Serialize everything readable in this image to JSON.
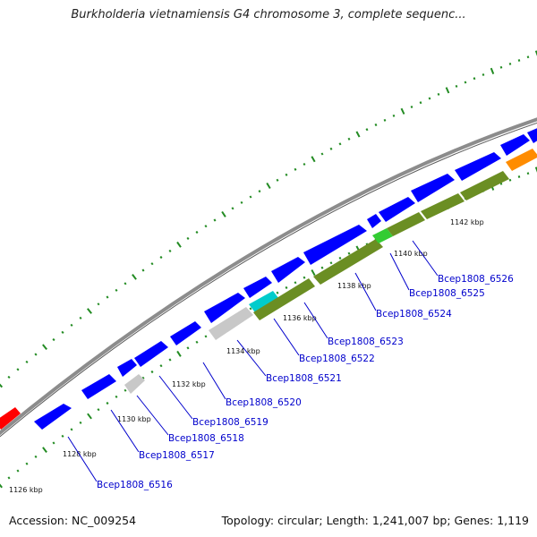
{
  "title": "Burkholderia vietnamiensis G4 chromosome 3, complete sequenc...",
  "footer": {
    "accession": "Accession: NC_009254",
    "stats": "Topology: circular; Length: 1,241,007 bp; Genes: 1,119"
  },
  "colors": {
    "backbone": "#8c8c8c",
    "forward_gene": "#0000ff",
    "reverse_gene": "#6b8e23",
    "gray_gene": "#c8c8c8",
    "red_gene": "#ff0000",
    "orange_gene": "#ff8c00",
    "cyan_gene": "#00cccc",
    "green_gene": "#33cc33",
    "tick_major": "#006400",
    "tick_minor": "#228b22",
    "label_link": "#0000cc"
  },
  "kbp_labels": [
    "1126 kbp",
    "1128 kbp",
    "1130 kbp",
    "1132 kbp",
    "1134 kbp",
    "1136 kbp",
    "1138 kbp",
    "1140 kbp",
    "1142 kbp"
  ],
  "gene_labels": [
    "Bcep1808_6516",
    "Bcep1808_6517",
    "Bcep1808_6518",
    "Bcep1808_6519",
    "Bcep1808_6520",
    "Bcep1808_6521",
    "Bcep1808_6522",
    "Bcep1808_6523",
    "Bcep1808_6524",
    "Bcep1808_6525",
    "Bcep1808_6526"
  ]
}
